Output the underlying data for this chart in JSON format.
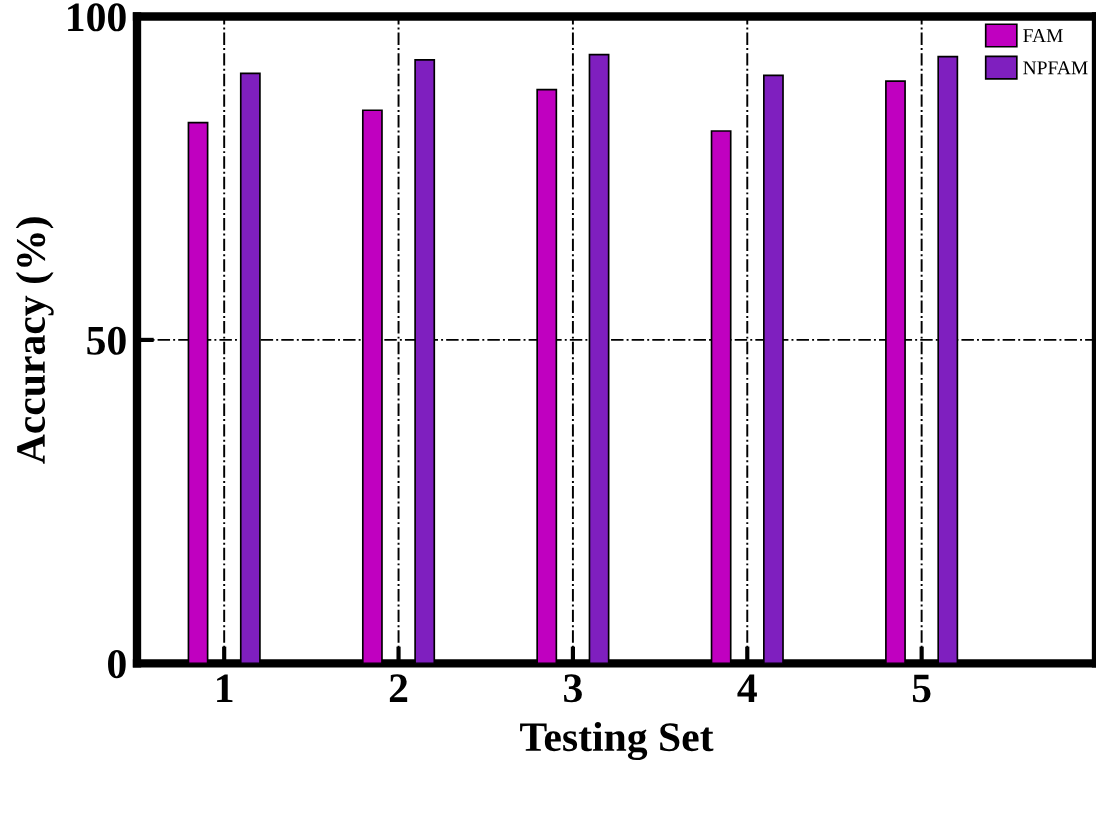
{
  "chart_data": {
    "type": "bar",
    "xlabel": "Testing Set",
    "ylabel": "Accuracy (%)",
    "x": [
      1,
      2,
      3,
      4,
      5
    ],
    "series": [
      {
        "name": "FAM",
        "color": "#c000c0",
        "values": [
          83.6,
          85.5,
          88.7,
          82.3,
          90.0
        ]
      },
      {
        "name": "NPFAM",
        "color": "#7f1fbf",
        "values": [
          91.2,
          93.3,
          94.1,
          90.9,
          93.8
        ]
      }
    ],
    "xlim": [
      0.5,
      6
    ],
    "xticks": [
      1,
      2,
      3,
      4,
      5
    ],
    "ylim": [
      0,
      100
    ],
    "yticks": [
      0,
      50,
      100
    ],
    "grid": true,
    "legend": "top right"
  }
}
